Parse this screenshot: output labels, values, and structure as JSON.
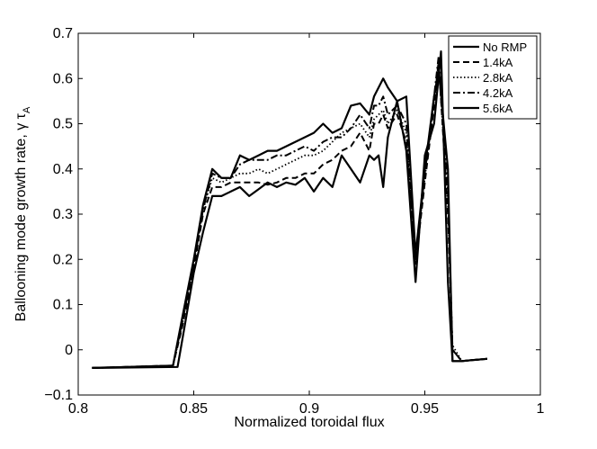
{
  "chart_data": {
    "type": "line",
    "xlabel": "Normalized toroidal flux",
    "ylabel": "Ballooning mode growth rate, γ τ",
    "ylabel_sub": "A",
    "xlim": [
      0.8,
      1.0
    ],
    "ylim": [
      -0.1,
      0.7
    ],
    "xticks": [
      0.8,
      0.85,
      0.9,
      0.95,
      1.0
    ],
    "xtick_labels": [
      "0.8",
      "0.85",
      "0.9",
      "0.95",
      "1"
    ],
    "yticks": [
      -0.1,
      0,
      0.1,
      0.2,
      0.3,
      0.4,
      0.5,
      0.6,
      0.7
    ],
    "ytick_labels": [
      "−0.1",
      "0",
      "0.1",
      "0.2",
      "0.3",
      "0.4",
      "0.5",
      "0.6",
      "0.7"
    ],
    "grid": false,
    "legend_position": "top-right",
    "series": [
      {
        "name": "No RMP",
        "style": "solid",
        "x": [
          0.806,
          0.841,
          0.845,
          0.85,
          0.854,
          0.858,
          0.862,
          0.866,
          0.87,
          0.874,
          0.878,
          0.882,
          0.886,
          0.89,
          0.894,
          0.898,
          0.902,
          0.906,
          0.91,
          0.914,
          0.918,
          0.922,
          0.926,
          0.928,
          0.93,
          0.932,
          0.934,
          0.938,
          0.942,
          0.946,
          0.95,
          0.954,
          0.956,
          0.96,
          0.962,
          0.966,
          0.97,
          0.977
        ],
        "values": [
          -0.04,
          -0.035,
          0.07,
          0.2,
          0.32,
          0.4,
          0.38,
          0.38,
          0.43,
          0.42,
          0.43,
          0.44,
          0.44,
          0.45,
          0.46,
          0.47,
          0.48,
          0.5,
          0.48,
          0.49,
          0.54,
          0.545,
          0.52,
          0.56,
          0.58,
          0.6,
          0.58,
          0.55,
          0.56,
          0.21,
          0.4,
          0.56,
          0.62,
          0.4,
          -0.025,
          -0.025,
          -0.023,
          -0.02
        ]
      },
      {
        "name": "1.4kA",
        "style": "dashed",
        "x": [
          0.806,
          0.841,
          0.845,
          0.85,
          0.854,
          0.858,
          0.862,
          0.866,
          0.87,
          0.874,
          0.878,
          0.882,
          0.886,
          0.89,
          0.894,
          0.898,
          0.902,
          0.906,
          0.91,
          0.914,
          0.918,
          0.922,
          0.926,
          0.928,
          0.93,
          0.932,
          0.934,
          0.938,
          0.942,
          0.946,
          0.95,
          0.954,
          0.956,
          0.96,
          0.962,
          0.966,
          0.97,
          0.977
        ],
        "values": [
          -0.04,
          -0.035,
          0.05,
          0.18,
          0.3,
          0.36,
          0.36,
          0.37,
          0.37,
          0.37,
          0.37,
          0.365,
          0.37,
          0.38,
          0.38,
          0.39,
          0.39,
          0.41,
          0.42,
          0.44,
          0.45,
          0.48,
          0.44,
          0.5,
          0.5,
          0.52,
          0.49,
          0.52,
          0.46,
          0.19,
          0.37,
          0.54,
          0.64,
          0.3,
          0.0,
          -0.025,
          -0.023,
          -0.02
        ]
      },
      {
        "name": "2.8kA",
        "style": "dotted",
        "x": [
          0.806,
          0.841,
          0.845,
          0.85,
          0.854,
          0.858,
          0.862,
          0.866,
          0.87,
          0.874,
          0.878,
          0.882,
          0.886,
          0.89,
          0.894,
          0.898,
          0.902,
          0.906,
          0.91,
          0.914,
          0.918,
          0.922,
          0.926,
          0.928,
          0.93,
          0.932,
          0.934,
          0.938,
          0.942,
          0.946,
          0.95,
          0.954,
          0.956,
          0.96,
          0.962,
          0.966,
          0.97,
          0.977
        ],
        "values": [
          -0.04,
          -0.035,
          0.055,
          0.19,
          0.31,
          0.38,
          0.37,
          0.38,
          0.39,
          0.39,
          0.4,
          0.39,
          0.4,
          0.41,
          0.42,
          0.43,
          0.43,
          0.44,
          0.46,
          0.48,
          0.49,
          0.5,
          0.47,
          0.51,
          0.52,
          0.53,
          0.5,
          0.53,
          0.48,
          0.2,
          0.38,
          0.55,
          0.63,
          0.32,
          0.01,
          -0.025,
          -0.023,
          -0.02
        ]
      },
      {
        "name": "4.2kA",
        "style": "dashdot",
        "x": [
          0.806,
          0.841,
          0.845,
          0.85,
          0.854,
          0.858,
          0.862,
          0.866,
          0.87,
          0.874,
          0.878,
          0.882,
          0.886,
          0.89,
          0.894,
          0.898,
          0.902,
          0.906,
          0.91,
          0.914,
          0.918,
          0.922,
          0.926,
          0.928,
          0.93,
          0.932,
          0.934,
          0.938,
          0.942,
          0.946,
          0.95,
          0.954,
          0.956,
          0.96,
          0.962,
          0.966,
          0.97,
          0.977
        ],
        "values": [
          -0.04,
          -0.035,
          0.06,
          0.19,
          0.31,
          0.39,
          0.38,
          0.38,
          0.41,
          0.42,
          0.42,
          0.42,
          0.43,
          0.43,
          0.44,
          0.45,
          0.44,
          0.46,
          0.47,
          0.47,
          0.49,
          0.52,
          0.49,
          0.54,
          0.54,
          0.56,
          0.52,
          0.54,
          0.5,
          0.2,
          0.39,
          0.56,
          0.65,
          0.35,
          0.0,
          -0.025,
          -0.023,
          -0.02
        ]
      },
      {
        "name": "5.6kA",
        "style": "solid",
        "x": [
          0.806,
          0.843,
          0.846,
          0.85,
          0.854,
          0.858,
          0.862,
          0.866,
          0.87,
          0.874,
          0.878,
          0.882,
          0.886,
          0.89,
          0.894,
          0.898,
          0.902,
          0.906,
          0.91,
          0.914,
          0.918,
          0.922,
          0.926,
          0.928,
          0.93,
          0.932,
          0.934,
          0.938,
          0.942,
          0.946,
          0.95,
          0.954,
          0.957,
          0.96,
          0.962,
          0.966,
          0.97,
          0.977
        ],
        "values": [
          -0.04,
          -0.038,
          0.05,
          0.17,
          0.26,
          0.34,
          0.34,
          0.35,
          0.36,
          0.34,
          0.355,
          0.37,
          0.36,
          0.37,
          0.365,
          0.38,
          0.35,
          0.38,
          0.36,
          0.43,
          0.4,
          0.37,
          0.43,
          0.42,
          0.43,
          0.36,
          0.47,
          0.55,
          0.44,
          0.15,
          0.43,
          0.5,
          0.66,
          0.15,
          -0.025,
          -0.025,
          -0.023,
          -0.02
        ]
      }
    ]
  }
}
